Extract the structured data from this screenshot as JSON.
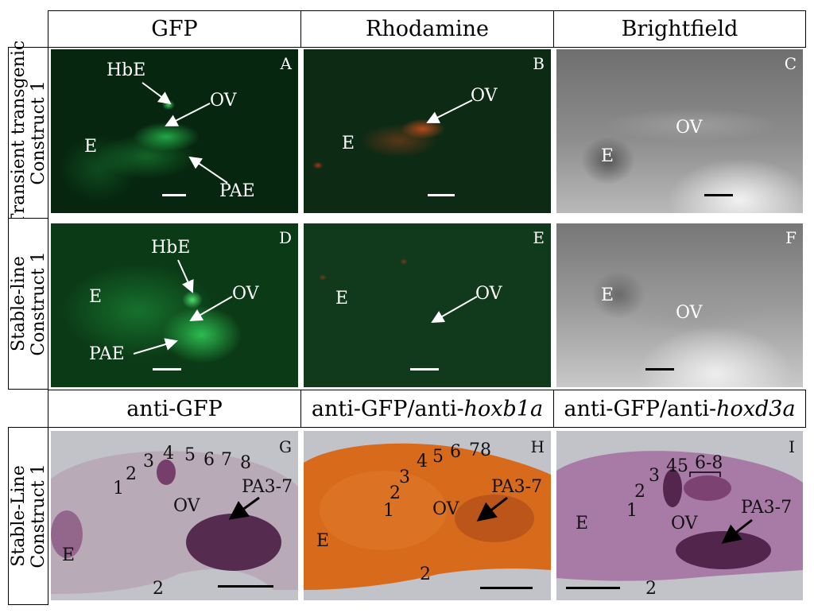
{
  "columns": {
    "gfp": "GFP",
    "rhodamine": "Rhodamine",
    "brightfield": "Brightfield"
  },
  "columns_lower": {
    "g": "anti-GFP",
    "h_prefix": "anti-GFP/anti-",
    "h_gene": "hoxb1a",
    "i_prefix": "anti-GFP/anti-",
    "i_gene": "hoxd3a"
  },
  "rows": {
    "row1_line1": "Transient transgenic",
    "row1_line2": "Construct 1",
    "row2_line1": "Stable-line",
    "row2_line2": "Construct 1",
    "row3_line1": "Stable-Line",
    "row3_line2": "Construct 1"
  },
  "panels": {
    "A": {
      "letter": "A",
      "hbe": "HbE",
      "ov": "OV",
      "e": "E",
      "pae": "PAE"
    },
    "B": {
      "letter": "B",
      "ov": "OV",
      "e": "E"
    },
    "C": {
      "letter": "C",
      "ov": "OV",
      "e": "E"
    },
    "D": {
      "letter": "D",
      "hbe": "HbE",
      "ov": "OV",
      "e": "E",
      "pae": "PAE"
    },
    "E": {
      "letter": "E",
      "ov": "OV",
      "e": "E"
    },
    "F": {
      "letter": "F",
      "ov": "OV",
      "e": "E"
    },
    "G": {
      "letter": "G",
      "ov": "OV",
      "e": "E",
      "pa": "PA3-7",
      "r1": "1",
      "r2": "2",
      "r3": "3",
      "r4": "4",
      "r5": "5",
      "r6": "6",
      "r7": "7",
      "r8": "8",
      "b2": "2"
    },
    "H": {
      "letter": "H",
      "ov": "OV",
      "e": "E",
      "pa": "PA3-7",
      "r1": "1",
      "r2": "2",
      "r3": "3",
      "r4": "4",
      "r5": "5",
      "r6": "6",
      "r78": "78",
      "b2": "2"
    },
    "I": {
      "letter": "I",
      "ov": "OV",
      "e": "E",
      "pa": "PA3-7",
      "r1": "1",
      "r2": "2",
      "r3": "3",
      "r45": "45",
      "r68": "6-8",
      "b2": "2"
    }
  },
  "colors": {
    "gfp_bg": "#06260f",
    "gfp_glow": "#1fb04a",
    "rhod_bg": "#0d2a14",
    "rhod_glow": "#c8441c",
    "bright_bg": "#8a8a8a",
    "stain_purple": "#4a1d44",
    "hoxb1a_orange": "#d86a1c"
  }
}
